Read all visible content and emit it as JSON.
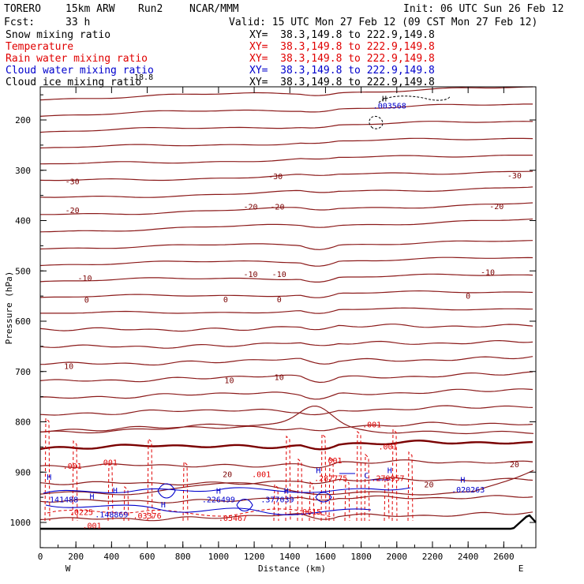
{
  "header": {
    "model": "TORERO",
    "resolution": "15km ARW",
    "run": "Run2",
    "org": "NCAR/MMM",
    "init": "Init: 06 UTC Sun 26 Feb 12",
    "fcst_label": "Fcst:",
    "fcst_value": "33 h",
    "valid": "Valid: 15 UTC Mon 27 Feb 12 (09 CST Mon 27 Feb 12)"
  },
  "legend": [
    {
      "name": "Snow mixing ratio",
      "xy": "XY=  38.3,149.8 to 222.9,149.8",
      "color": "#000000"
    },
    {
      "name": "Temperature",
      "xy": "XY=  38.3,149.8 to 222.9,149.8",
      "color": "#e00000"
    },
    {
      "name": "Rain water mixing ratio",
      "xy": "XY=  38.3,149.8 to 222.9,149.8",
      "color": "#e00000"
    },
    {
      "name": "Cloud water mixing ratio",
      "xy": "XY=  38.3,149.8 to 222.9,149.8",
      "color": "#0000cc"
    },
    {
      "name": "Cloud ice mixing ratio",
      "xy": "XY=  38.3,149.8 to 222.9,149.8",
      "color": "#000000"
    }
  ],
  "chart_data": {
    "type": "cross-section",
    "xlabel": "Distance (km)",
    "ylabel": "Pressure (hPa)",
    "xlim": [
      0,
      2780
    ],
    "x_ticks": [
      0,
      200,
      400,
      600,
      800,
      1000,
      1200,
      1400,
      1600,
      1800,
      2000,
      2200,
      2400,
      2600
    ],
    "y_ticks": [
      200,
      300,
      400,
      500,
      600,
      700,
      800,
      900,
      1000
    ],
    "endpoints": {
      "left": "W",
      "right": "E"
    },
    "temperature_labels": [
      {
        "value": "-30",
        "x": 180,
        "p": 328
      },
      {
        "value": "-30",
        "x": 1320,
        "p": 318
      },
      {
        "value": "-30",
        "x": 2660,
        "p": 316
      },
      {
        "value": "-20",
        "x": 180,
        "p": 385
      },
      {
        "value": "-20",
        "x": 1180,
        "p": 378
      },
      {
        "value": "-20",
        "x": 1330,
        "p": 378
      },
      {
        "value": "-20",
        "x": 2560,
        "p": 377
      },
      {
        "value": "-10",
        "x": 250,
        "p": 520
      },
      {
        "value": "-10",
        "x": 1180,
        "p": 512
      },
      {
        "value": "-10",
        "x": 1340,
        "p": 512
      },
      {
        "value": "-10",
        "x": 2510,
        "p": 508
      },
      {
        "value": "0",
        "x": 260,
        "p": 563
      },
      {
        "value": "0",
        "x": 1040,
        "p": 562
      },
      {
        "value": "0",
        "x": 1340,
        "p": 562
      },
      {
        "value": "0",
        "x": 2400,
        "p": 555
      },
      {
        "value": "10",
        "x": 160,
        "p": 695
      },
      {
        "value": "10",
        "x": 1060,
        "p": 723
      },
      {
        "value": "10",
        "x": 1340,
        "p": 717
      },
      {
        "value": "20",
        "x": 1050,
        "p": 910
      },
      {
        "value": "20",
        "x": 2180,
        "p": 930
      },
      {
        "value": "20",
        "x": 2660,
        "p": 890
      }
    ],
    "rain_labels": [
      {
        "value": ".001",
        "x": 180,
        "p": 893
      },
      {
        "value": ".001",
        "x": 380,
        "p": 886
      },
      {
        "value": ".001",
        "x": 1240,
        "p": 910
      },
      {
        "value": ".001",
        "x": 1640,
        "p": 882
      },
      {
        "value": ".001",
        "x": 1860,
        "p": 811
      },
      {
        "value": ".001",
        "x": 1950,
        "p": 855
      },
      {
        "value": ".001",
        "x": 290,
        "p": 1012
      },
      {
        "value": ".0225",
        "x": 230,
        "p": 985
      },
      {
        "value": ".03376",
        "x": 600,
        "p": 992
      },
      {
        "value": ".05467",
        "x": 1080,
        "p": 997
      },
      {
        "value": ".0615",
        "x": 1510,
        "p": 984
      },
      {
        "value": ".287775",
        "x": 1630,
        "p": 918
      },
      {
        "value": ".279957",
        "x": 1950,
        "p": 918
      }
    ],
    "cloud_labels": [
      {
        "value": ".141488",
        "x": 120,
        "p": 960
      },
      {
        "value": ".148869",
        "x": 400,
        "p": 990
      },
      {
        "value": ".226499",
        "x": 1000,
        "p": 960
      },
      {
        "value": ".377039",
        "x": 1330,
        "p": 960
      },
      {
        "value": ".020263",
        "x": 2400,
        "p": 940
      },
      {
        "value": ".003568",
        "x": 1960,
        "p": 177
      }
    ],
    "highs": [
      {
        "x": 50,
        "p": 915
      },
      {
        "x": 290,
        "p": 954
      },
      {
        "x": 420,
        "p": 942
      },
      {
        "x": 690,
        "p": 970
      },
      {
        "x": 1000,
        "p": 943
      },
      {
        "x": 1380,
        "p": 943
      },
      {
        "x": 1560,
        "p": 902
      },
      {
        "x": 1960,
        "p": 902
      },
      {
        "x": 2370,
        "p": 921
      },
      {
        "x": 1930,
        "p": 163
      }
    ],
    "lows": [
      {
        "x": 1830,
        "p": 912
      }
    ],
    "overlap_label": "-18.8"
  }
}
